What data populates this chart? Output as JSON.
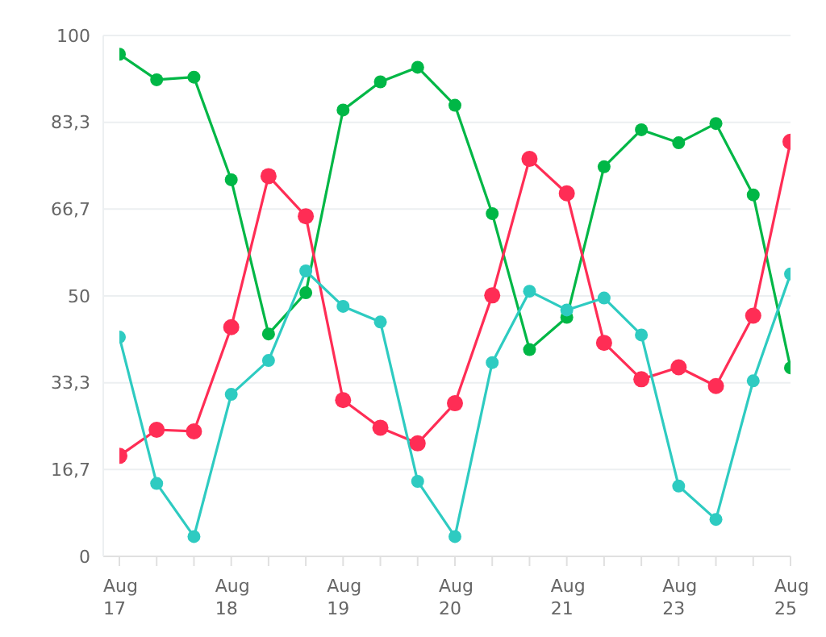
{
  "chart_data": {
    "type": "line",
    "categories": [
      "Aug 17",
      null,
      null,
      "Aug 18",
      null,
      null,
      "Aug 19",
      null,
      null,
      "Aug 20",
      null,
      null,
      "Aug 21",
      null,
      null,
      "Aug 23",
      null,
      null,
      "Aug 25"
    ],
    "series": [
      {
        "color": "#00b746",
        "values": [
          96.4,
          91.5,
          92.0,
          72.3,
          42.7,
          50.6,
          85.7,
          91.1,
          93.9,
          86.6,
          65.8,
          39.7,
          45.9,
          74.8,
          81.9,
          79.4,
          83.1,
          69.4,
          36.2
        ]
      },
      {
        "color": "#ff2d55",
        "values": [
          19.3,
          24.3,
          24.0,
          44.0,
          73.0,
          65.3,
          30.0,
          24.7,
          21.7,
          29.4,
          50.1,
          76.3,
          69.7,
          41.0,
          34.0,
          36.3,
          32.7,
          46.2,
          79.6
        ]
      },
      {
        "color": "#2ecbc1",
        "values": [
          42.1,
          14.0,
          3.8,
          31.1,
          37.6,
          54.8,
          48.0,
          45.0,
          14.4,
          3.8,
          37.2,
          50.9,
          47.3,
          49.6,
          42.5,
          13.5,
          7.1,
          33.7,
          54.2
        ]
      }
    ],
    "ylim": [
      0,
      100
    ],
    "yticks": [
      0,
      {
        "value": 16.67,
        "label": "16,7"
      },
      {
        "value": 33.33,
        "label": "33,3"
      },
      50,
      {
        "value": 66.67,
        "label": "66,7"
      },
      {
        "value": 83.33,
        "label": "83,3"
      },
      100
    ],
    "grid": "y",
    "marker": "circle",
    "line_style": "solid",
    "legend": false
  }
}
